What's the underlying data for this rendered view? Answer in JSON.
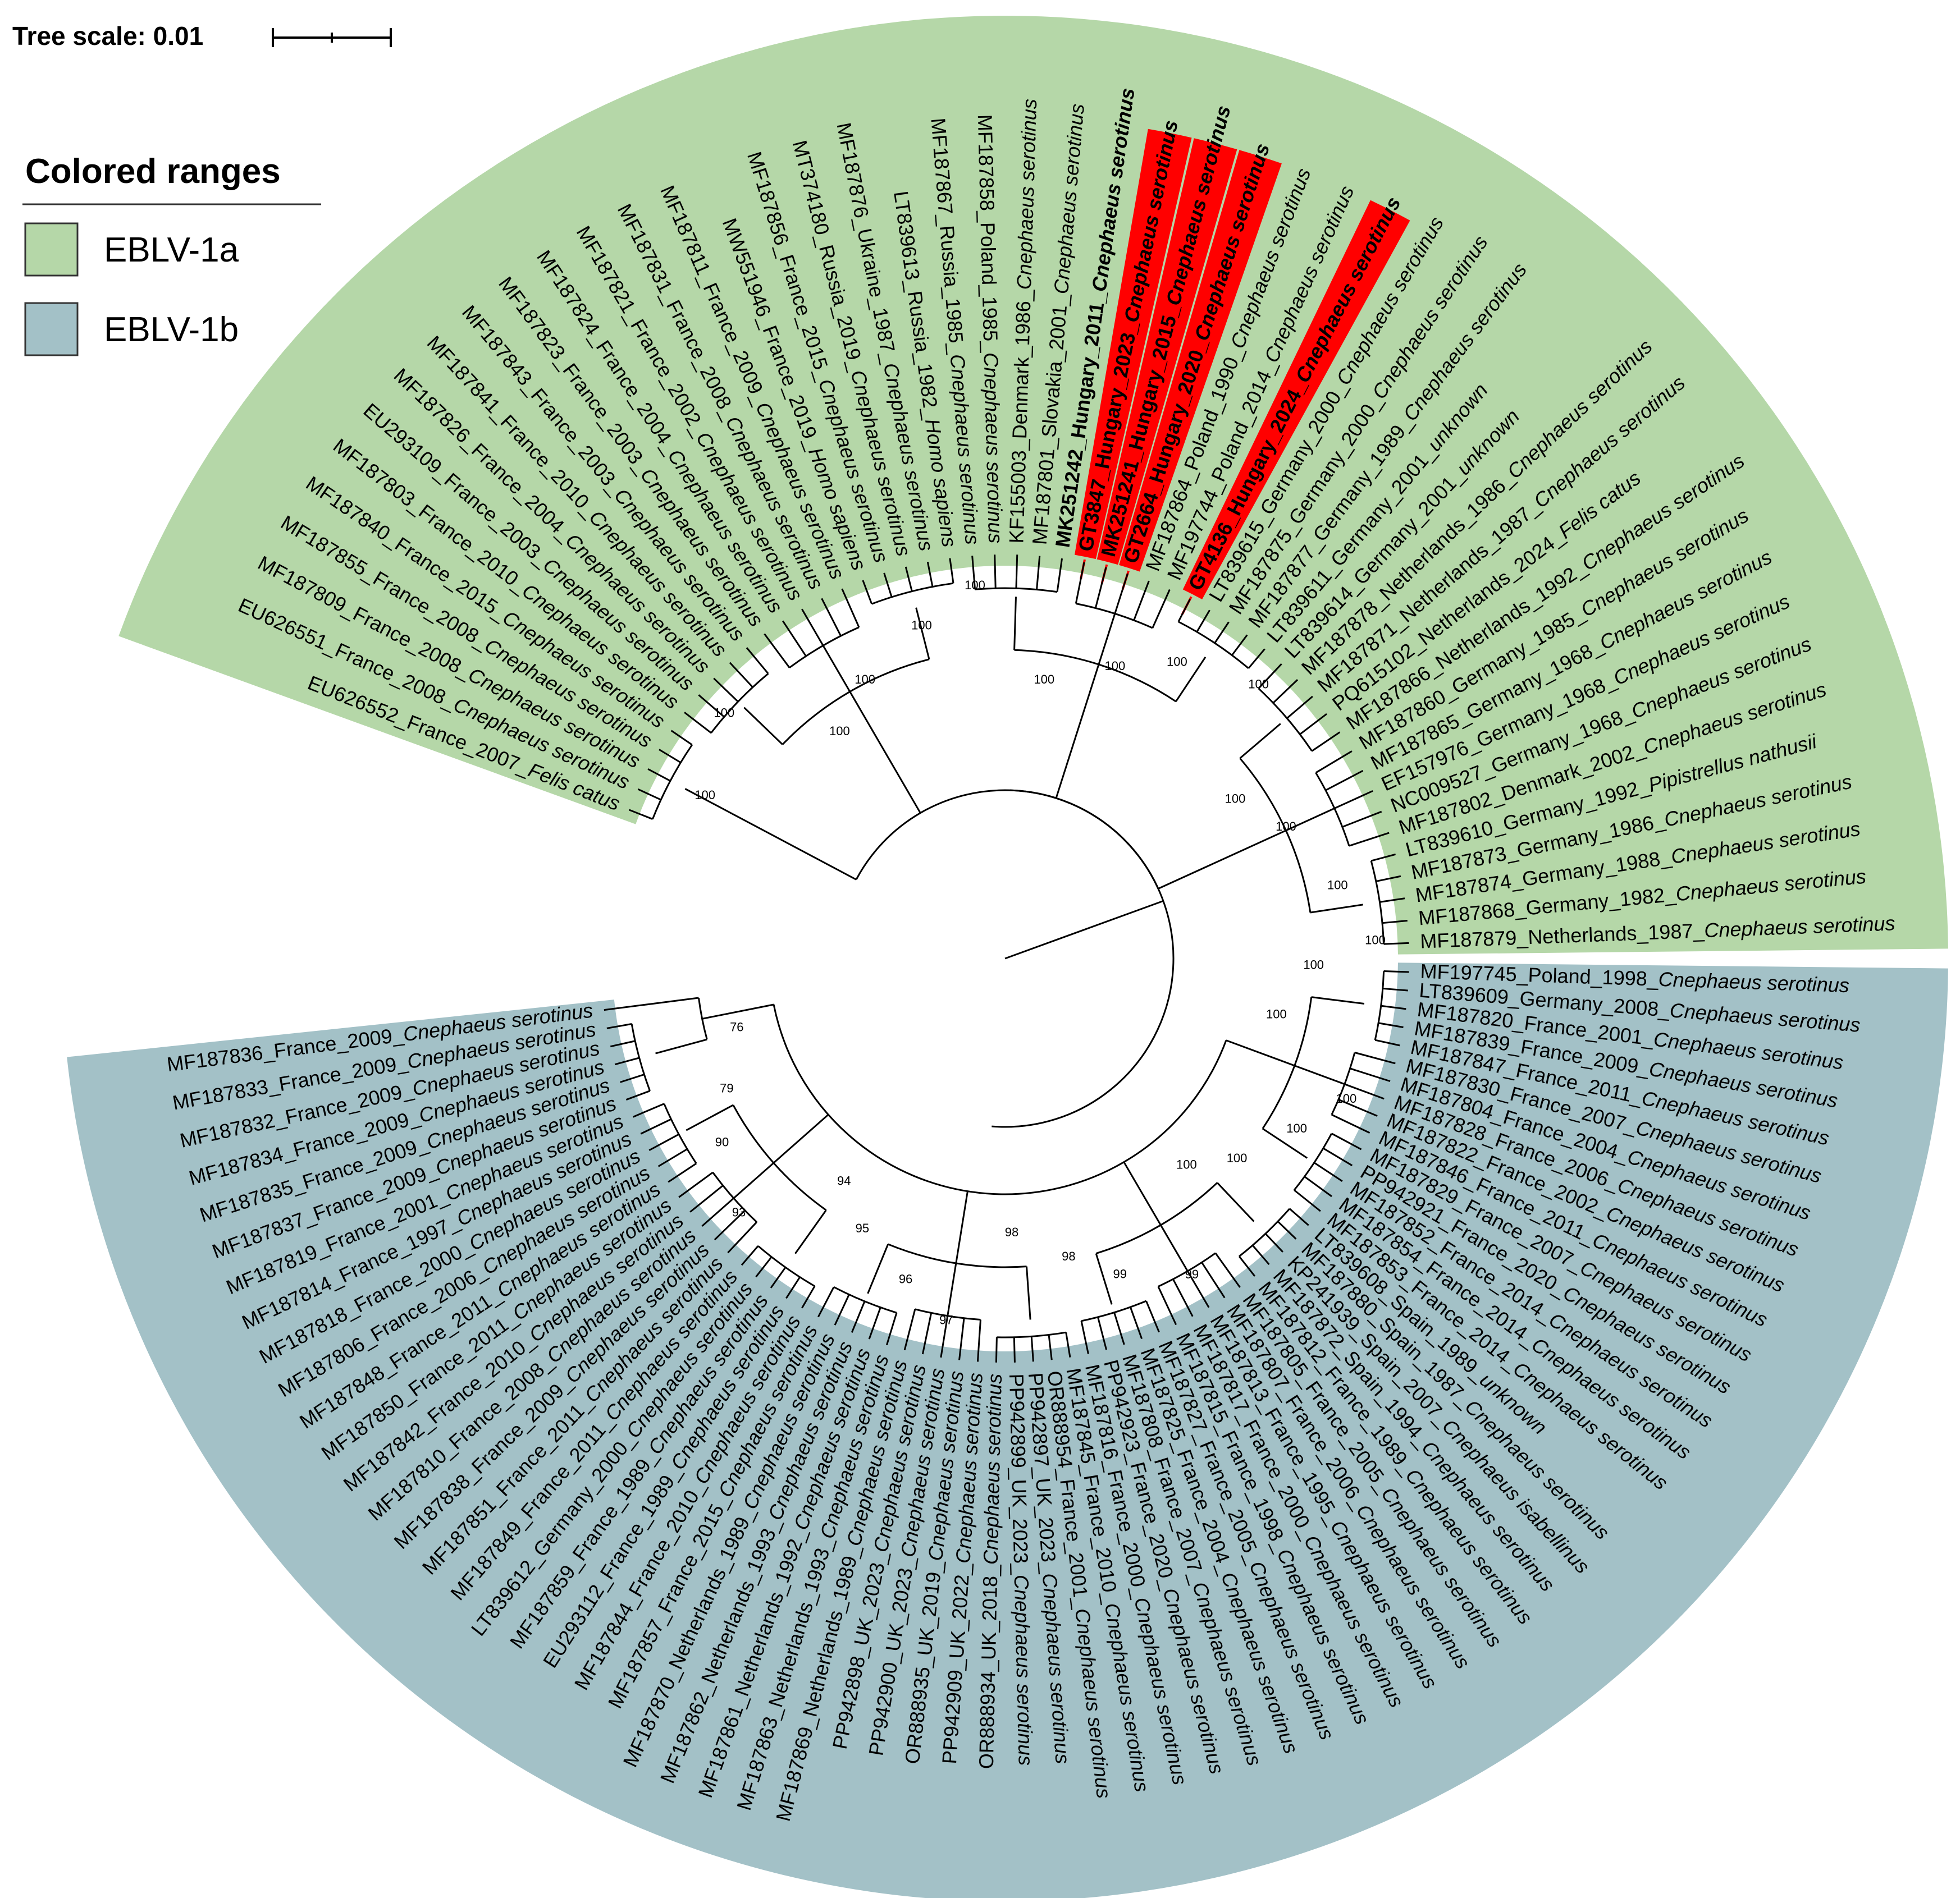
{
  "tree_scale": {
    "label": "Tree scale: 0.01"
  },
  "legend": {
    "title": "Colored ranges",
    "items": [
      {
        "label": "EBLV-1a",
        "color": "#b5d7a8"
      },
      {
        "label": "EBLV-1b",
        "color": "#a3c1c7"
      }
    ]
  },
  "highlight_color": "#ff0000",
  "clades": [
    {
      "name": "EBLV-1a",
      "color": "#b5d7a8",
      "leaves": [
        {
          "acc": "MF187879_Netherlands_1987_",
          "host": "Cnephaeus serotinus"
        },
        {
          "acc": "MF187868_Germany_1982_",
          "host": "Cnephaeus serotinus"
        },
        {
          "acc": "MF187874_Germany_1988_",
          "host": "Cnephaeus serotinus"
        },
        {
          "acc": "MF187873_Germany_1986_",
          "host": "Cnephaeus serotinus"
        },
        {
          "acc": "LT839610_Germany_1992_",
          "host": "Pipistrellus nathusii"
        },
        {
          "acc": "MF187802_Denmark_2002_",
          "host": "Cnephaeus serotinus"
        },
        {
          "acc": "NC009527_Germany_1968_",
          "host": "Cnephaeus serotinus"
        },
        {
          "acc": "EF157976_Germany_1968_",
          "host": "Cnephaeus serotinus"
        },
        {
          "acc": "MF187865_Germany_1968_",
          "host": "Cnephaeus serotinus"
        },
        {
          "acc": "MF187860_Germany_1985_",
          "host": "Cnephaeus serotinus"
        },
        {
          "acc": "MF187866_Netherlands_1992_",
          "host": "Cnephaeus serotinus"
        },
        {
          "acc": "PQ615102_Netherlands_2024_",
          "host": "Felis catus"
        },
        {
          "acc": "MF187871_Netherlands_1987_",
          "host": "Cnephaeus serotinus"
        },
        {
          "acc": "MF187878_Netherlands_1986_",
          "host": "Cnephaeus serotinus"
        },
        {
          "acc": "LT839614_Germany_2001_",
          "host": "unknown"
        },
        {
          "acc": "LT839611_Germany_2001_",
          "host": "unknown"
        },
        {
          "acc": "MF187877_Germany_1989_",
          "host": "Cnephaeus serotinus"
        },
        {
          "acc": "MF187875_Germany_2000_",
          "host": "Cnephaeus serotinus"
        },
        {
          "acc": "LT839615_Germany_2000_",
          "host": "Cnephaeus serotinus"
        },
        {
          "acc": "GT4136_Hungary_2024_",
          "host": "Cnephaeus serotinus",
          "bold": true,
          "highlight": true
        },
        {
          "acc": "MF197744_Poland_2014_",
          "host": "Cnephaeus serotinus"
        },
        {
          "acc": "MF187864_Poland_1990_",
          "host": "Cnephaeus serotinus"
        },
        {
          "acc": "GT2664_Hungary_2020_",
          "host": "Cnephaeus serotinus",
          "bold": true,
          "highlight": true
        },
        {
          "acc": "MK251241_Hungary_2015_",
          "host": "Cnephaeus serotinus",
          "bold": true,
          "highlight": true
        },
        {
          "acc": "GT3847_Hungary_2023_",
          "host": "Cnephaeus serotinus",
          "bold": true,
          "highlight": true
        },
        {
          "acc": "MK251242_Hungary_2011_",
          "host": "Cnephaeus serotinus",
          "bold": true
        },
        {
          "acc": "MF187801_Slovakia_2001_",
          "host": "Cnephaeus serotinus"
        },
        {
          "acc": "KF155003_Denmark_1986_",
          "host": "Cnephaeus serotinus"
        },
        {
          "acc": "MF187858_Poland_1985_",
          "host": "Cnephaeus serotinus"
        },
        {
          "acc": "MF187867_Russia_1985_",
          "host": "Cnephaeus serotinus"
        },
        {
          "acc": "LT839613_Russia_1982_",
          "host": "Homo sapiens"
        },
        {
          "acc": "MF187876_Ukraine_1987_",
          "host": "Cnephaeus serotinus"
        },
        {
          "acc": "MT374180_Russia_2019_",
          "host": "Cnephaeus serotinus"
        },
        {
          "acc": "MF187856_France_2015_",
          "host": "Cnephaeus serotinus"
        },
        {
          "acc": "MW551946_France_2019_",
          "host": "Homo sapiens"
        },
        {
          "acc": "MF187811_France_2009_",
          "host": "Cnephaeus serotinus"
        },
        {
          "acc": "MF187831_France_2008_",
          "host": "Cnephaeus serotinus"
        },
        {
          "acc": "MF187821_France_2002_",
          "host": "Cnephaeus serotinus"
        },
        {
          "acc": "MF187824_France_2004_",
          "host": "Cnephaeus serotinus"
        },
        {
          "acc": "MF187823_France_2003_",
          "host": "Cnephaeus serotinus"
        },
        {
          "acc": "MF187843_France_2003_",
          "host": "Cnephaeus serotinus"
        },
        {
          "acc": "MF187841_France_2010_",
          "host": "Cnephaeus serotinus"
        },
        {
          "acc": "MF187826_France_2004_",
          "host": "Cnephaeus serotinus"
        },
        {
          "acc": "EU293109_France_2003_",
          "host": "Cnephaeus serotinus"
        },
        {
          "acc": "MF187803_France_2010_",
          "host": "Cnephaeus serotinus"
        },
        {
          "acc": "MF187840_France_2015_",
          "host": "Cnephaeus serotinus"
        },
        {
          "acc": "MF187855_France_2008_",
          "host": "Cnephaeus serotinus"
        },
        {
          "acc": "MF187809_France_2008_",
          "host": "Cnephaeus serotinus"
        },
        {
          "acc": "EU626551_France_2008_",
          "host": "Cnephaeus serotinus"
        },
        {
          "acc": "EU626552_France_2007_",
          "host": "Felis catus"
        }
      ]
    },
    {
      "name": "EBLV-1b",
      "color": "#a3c1c7",
      "leaves": [
        {
          "acc": "MF197745_Poland_1998_",
          "host": "Cnephaeus serotinus"
        },
        {
          "acc": "LT839609_Germany_2008_",
          "host": "Cnephaeus serotinus"
        },
        {
          "acc": "MF187820_France_2001_",
          "host": "Cnephaeus serotinus"
        },
        {
          "acc": "MF187839_France_2009_",
          "host": "Cnephaeus serotinus"
        },
        {
          "acc": "MF187847_France_2011_",
          "host": "Cnephaeus serotinus"
        },
        {
          "acc": "MF187830_France_2007_",
          "host": "Cnephaeus serotinus"
        },
        {
          "acc": "MF187804_France_2004_",
          "host": "Cnephaeus serotinus"
        },
        {
          "acc": "MF187828_France_2006_",
          "host": "Cnephaeus serotinus"
        },
        {
          "acc": "MF187822_France_2002_",
          "host": "Cnephaeus serotinus"
        },
        {
          "acc": "MF187846_France_2011_",
          "host": "Cnephaeus serotinus"
        },
        {
          "acc": "MF187829_France_2007_",
          "host": "Cnephaeus serotinus"
        },
        {
          "acc": "PP942921_France_2020_",
          "host": "Cnephaeus serotinus"
        },
        {
          "acc": "MF187852_France_2014_",
          "host": "Cnephaeus serotinus"
        },
        {
          "acc": "MF187854_France_2014_",
          "host": "Cnephaeus serotinus"
        },
        {
          "acc": "MF187853_France_2014_",
          "host": "Cnephaeus serotinus"
        },
        {
          "acc": "LT839608_Spain_1989_",
          "host": "unknown"
        },
        {
          "acc": "MF187880_Spain_1987_",
          "host": "Cnephaeus serotinus"
        },
        {
          "acc": "KP241939_Spain_2007_",
          "host": "Cnephaeus isabellinus"
        },
        {
          "acc": "MF187872_Spain_1994_",
          "host": "Cnephaeus serotinus"
        },
        {
          "acc": "MF187812_France_1989_",
          "host": "Cnephaeus serotinus"
        },
        {
          "acc": "MF187805_France_2005_",
          "host": "Cnephaeus serotinus"
        },
        {
          "acc": "MF187807_France_2006_",
          "host": "Cnephaeus serotinus"
        },
        {
          "acc": "MF187813_France_1995_",
          "host": "Cnephaeus serotinus"
        },
        {
          "acc": "MF187817_France_2000_",
          "host": "Cnephaeus serotinus"
        },
        {
          "acc": "MF187815_France_1998_",
          "host": "Cnephaeus serotinus"
        },
        {
          "acc": "MF187827_France_2005_",
          "host": "Cnephaeus serotinus"
        },
        {
          "acc": "MF187825_France_2004_",
          "host": "Cnephaeus serotinus"
        },
        {
          "acc": "MF187808_France_2007_",
          "host": "Cnephaeus serotinus"
        },
        {
          "acc": "PP942923_France_2020_",
          "host": "Cnephaeus serotinus"
        },
        {
          "acc": "MF187816_France_2000_",
          "host": "Cnephaeus serotinus"
        },
        {
          "acc": "MF187845_France_2010_",
          "host": "Cnephaeus serotinus"
        },
        {
          "acc": "OR888954_France_2001_",
          "host": "Cnephaeus serotinus"
        },
        {
          "acc": "PP942897_UK_2023_",
          "host": "Cnephaeus serotinus"
        },
        {
          "acc": "PP942899_UK_2023_",
          "host": "Cnephaeus serotinus"
        },
        {
          "acc": "OR888934_UK_2018_",
          "host": "Cnephaeus serotinus"
        },
        {
          "acc": "PP942909_UK_2022_",
          "host": "Cnephaeus serotinus"
        },
        {
          "acc": "OR888935_UK_2019_",
          "host": "Cnephaeus serotinus"
        },
        {
          "acc": "PP942900_UK_2023_",
          "host": "Cnephaeus serotinus"
        },
        {
          "acc": "PP942898_UK_2023_",
          "host": "Cnephaeus serotinus"
        },
        {
          "acc": "MF187869_Netherlands_1989_",
          "host": "Cnephaeus serotinus"
        },
        {
          "acc": "MF187863_Netherlands_1993_",
          "host": "Cnephaeus serotinus"
        },
        {
          "acc": "MF187861_Netherlands_1992_",
          "host": "Cnephaeus serotinus"
        },
        {
          "acc": "MF187862_Netherlands_1993_",
          "host": "Cnephaeus serotinus"
        },
        {
          "acc": "MF187870_Netherlands_1989_",
          "host": "Cnephaeus serotinus"
        },
        {
          "acc": "MF187857_France_2015_",
          "host": "Cnephaeus serotinus"
        },
        {
          "acc": "MF187844_France_2010_",
          "host": "Cnephaeus serotinus"
        },
        {
          "acc": "EU293112_France_1989_",
          "host": "Cnephaeus serotinus"
        },
        {
          "acc": "MF187859_France_1989_",
          "host": "Cnephaeus serotinus"
        },
        {
          "acc": "LT839612_Germany_2000_",
          "host": "Cnephaeus serotinus"
        },
        {
          "acc": "MF187849_France_2011_",
          "host": "Cnephaeus serotinus"
        },
        {
          "acc": "MF187851_France_2011_",
          "host": "Cnephaeus serotinus"
        },
        {
          "acc": "MF187838_France_2009_",
          "host": "Cnephaeus serotinus"
        },
        {
          "acc": "MF187810_France_2008_",
          "host": "Cnephaeus serotinus"
        },
        {
          "acc": "MF187842_France_2010_",
          "host": "Cnephaeus serotinus"
        },
        {
          "acc": "MF187850_France_2011_",
          "host": "Cnephaeus serotinus"
        },
        {
          "acc": "MF187848_France_2011_",
          "host": "Cnephaeus serotinus"
        },
        {
          "acc": "MF187806_France_2006_",
          "host": "Cnephaeus serotinus"
        },
        {
          "acc": "MF187818_France_2000_",
          "host": "Cnephaeus serotinus"
        },
        {
          "acc": "MF187814_France_1997_",
          "host": "Cnephaeus serotinus"
        },
        {
          "acc": "MF187819_France_2001_",
          "host": "Cnephaeus serotinus"
        },
        {
          "acc": "MF187837_France_2009_",
          "host": "Cnephaeus serotinus"
        },
        {
          "acc": "MF187835_France_2009_",
          "host": "Cnephaeus serotinus"
        },
        {
          "acc": "MF187834_France_2009_",
          "host": "Cnephaeus serotinus"
        },
        {
          "acc": "MF187832_France_2009_",
          "host": "Cnephaeus serotinus"
        },
        {
          "acc": "MF187833_France_2009_",
          "host": "Cnephaeus serotinus"
        },
        {
          "acc": "MF187836_France_2009_",
          "host": "Cnephaeus serotinus"
        }
      ]
    }
  ],
  "bootstrap_values": [
    "100",
    "100",
    "100",
    "100",
    "100",
    "100",
    "100",
    "100",
    "100",
    "100",
    "100",
    "100",
    "100",
    "100",
    "100",
    "100",
    "100",
    "100",
    "100",
    "100",
    "99",
    "99",
    "98",
    "98",
    "97",
    "96",
    "95",
    "94",
    "93",
    "90",
    "79",
    "76"
  ]
}
